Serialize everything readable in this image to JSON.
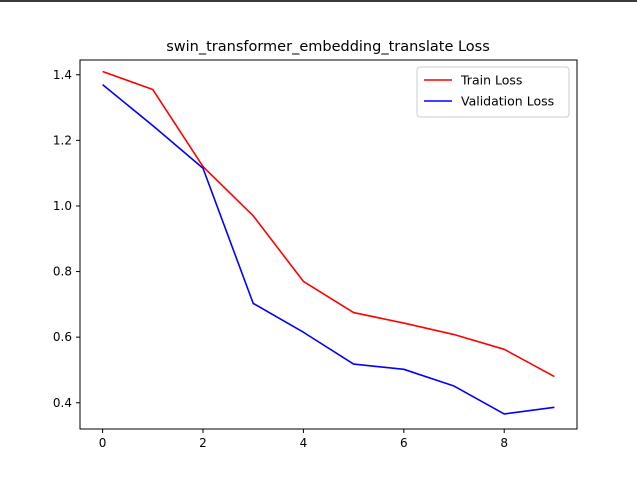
{
  "chart_data": {
    "type": "line",
    "title": "swin_transformer_embedding_translate Loss",
    "xlabel": "",
    "ylabel": "",
    "x": [
      0,
      1,
      2,
      3,
      4,
      5,
      6,
      7,
      8,
      9
    ],
    "xlim": [
      -0.45,
      9.45
    ],
    "ylim": [
      0.32,
      1.445
    ],
    "xticks": [
      0,
      2,
      4,
      6,
      8
    ],
    "yticks": [
      0.4,
      0.6,
      0.8,
      1.0,
      1.2,
      1.4
    ],
    "xtick_labels": [
      "0",
      "2",
      "4",
      "6",
      "8"
    ],
    "ytick_labels": [
      "0.4",
      "0.6",
      "0.8",
      "1.0",
      "1.2",
      "1.4"
    ],
    "grid": false,
    "legend_position": "top-right",
    "series": [
      {
        "name": "Train Loss",
        "color": "#ff0000",
        "values": [
          1.41,
          1.355,
          1.12,
          0.97,
          0.77,
          0.675,
          0.643,
          0.608,
          0.563,
          0.48
        ]
      },
      {
        "name": "Validation Loss",
        "color": "#0000ff",
        "values": [
          1.37,
          1.245,
          1.115,
          0.703,
          0.615,
          0.518,
          0.502,
          0.451,
          0.366,
          0.386
        ]
      }
    ]
  }
}
